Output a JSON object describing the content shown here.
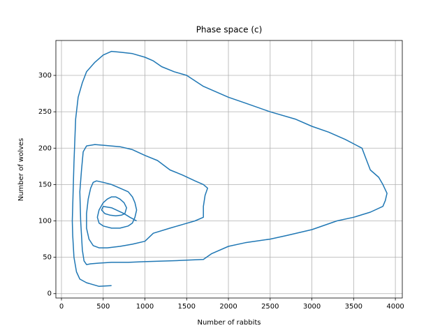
{
  "chart_data": {
    "type": "line",
    "title": "Phase space (c)",
    "x_label": "Number of rabbits",
    "y_label": "Number of wolves",
    "x": [
      600,
      450,
      300,
      220,
      180,
      150,
      135,
      130,
      140,
      150,
      170,
      200,
      250,
      300,
      400,
      500,
      600,
      700,
      850,
      1000,
      1100,
      1200,
      1350,
      1500,
      1700,
      2000,
      2200,
      2500,
      2800,
      3000,
      3200,
      3400,
      3600,
      3650,
      3700,
      3800,
      3850,
      3900,
      3880,
      3850,
      3700,
      3500,
      3300,
      3000,
      2700,
      2500,
      2200,
      2000,
      1800,
      1700,
      1500,
      1300,
      1000,
      800,
      600,
      450,
      350,
      300,
      270,
      250,
      240,
      230,
      220,
      240,
      260,
      300,
      400,
      500,
      700,
      850,
      1000,
      1150,
      1300,
      1450,
      1600,
      1700,
      1750,
      1720,
      1700,
      1700,
      1600,
      1450,
      1300,
      1100,
      1000,
      850,
      700,
      550,
      450,
      380,
      330,
      300,
      300,
      320,
      350,
      380,
      420,
      500,
      600,
      700,
      800,
      850,
      880,
      900,
      880,
      850,
      800,
      700,
      600,
      500,
      450,
      430,
      450,
      500,
      550,
      600,
      650,
      700,
      750,
      780,
      760,
      720,
      650,
      580,
      520,
      480,
      500,
      600,
      750,
      820,
      900
    ],
    "series": [
      {
        "name": "wolves",
        "color": "#1f77b4",
        "values": [
          11,
          10,
          15,
          20,
          30,
          50,
          80,
          100,
          140,
          180,
          240,
          270,
          290,
          305,
          318,
          328,
          333,
          332,
          330,
          325,
          320,
          312,
          305,
          300,
          285,
          270,
          262,
          250,
          240,
          230,
          222,
          212,
          200,
          185,
          170,
          160,
          150,
          138,
          128,
          120,
          112,
          105,
          100,
          88,
          80,
          75,
          70,
          65,
          55,
          47,
          46,
          45,
          44,
          43,
          43,
          42,
          41,
          40,
          45,
          60,
          80,
          100,
          140,
          170,
          195,
          203,
          205,
          204,
          202,
          198,
          190,
          183,
          170,
          163,
          155,
          150,
          145,
          135,
          120,
          105,
          100,
          95,
          90,
          83,
          72,
          68,
          65,
          63,
          63,
          66,
          75,
          90,
          110,
          130,
          145,
          153,
          155,
          153,
          150,
          145,
          140,
          133,
          125,
          115,
          105,
          97,
          93,
          90,
          90,
          93,
          97,
          105,
          115,
          125,
          130,
          133,
          133,
          130,
          125,
          118,
          110,
          108,
          107,
          108,
          110,
          115,
          120,
          118,
          110,
          105,
          100
        ]
      }
    ],
    "xlim": [
      -67,
      4083
    ],
    "ylim": [
      -6,
      348
    ],
    "xticks": [
      0,
      500,
      1000,
      1500,
      2000,
      2500,
      3000,
      3500,
      4000
    ],
    "yticks": [
      0,
      50,
      100,
      150,
      200,
      250,
      300
    ],
    "grid": true
  }
}
